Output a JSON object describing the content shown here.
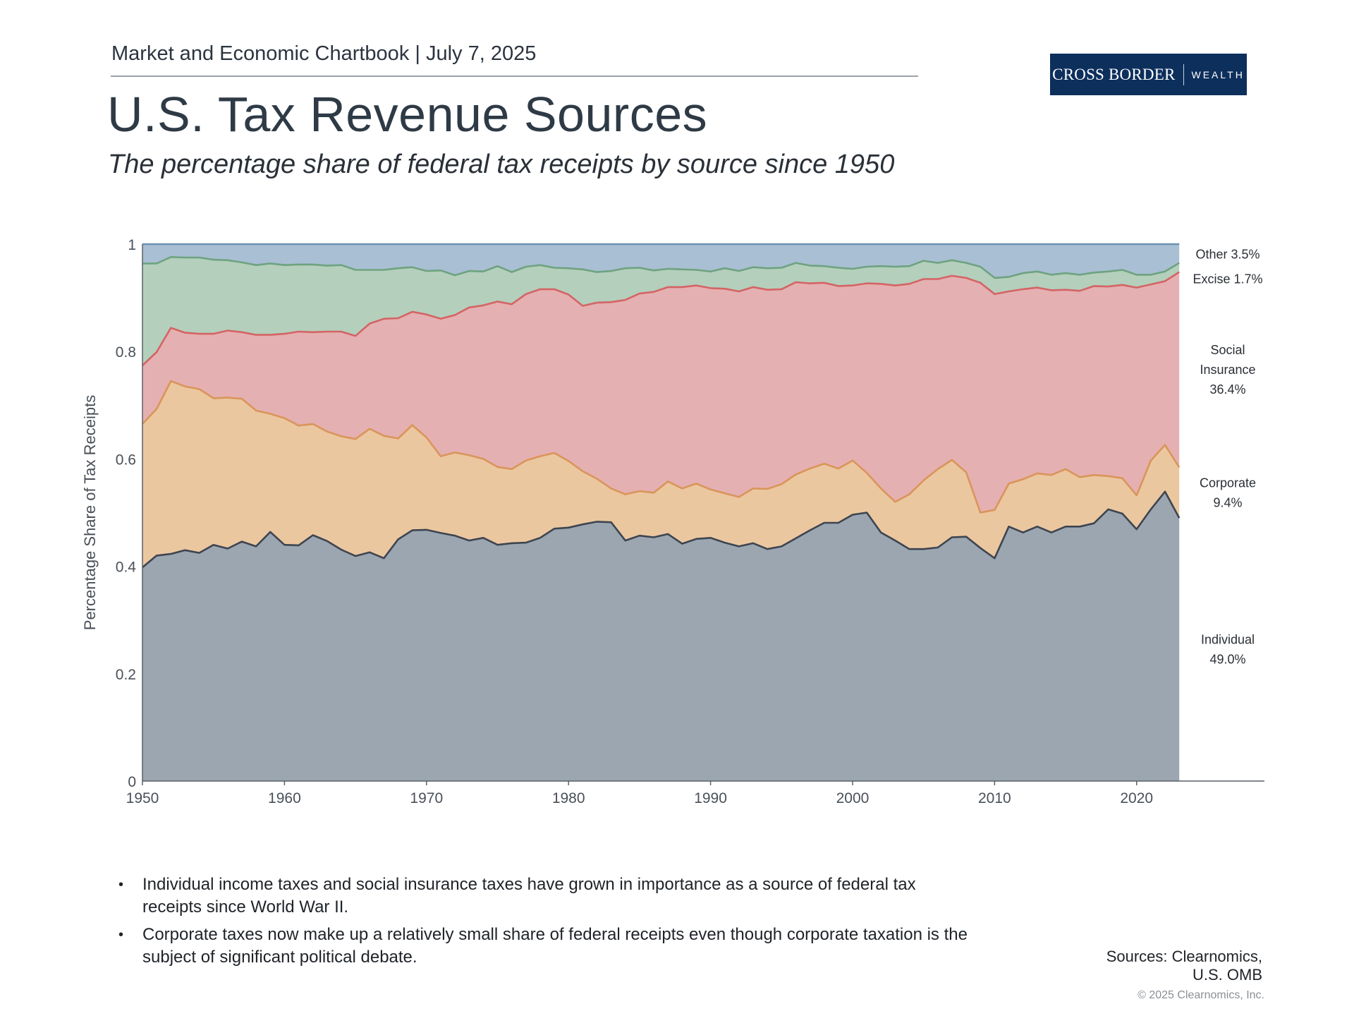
{
  "header": {
    "chartbook": "Market and Economic Chartbook | July 7, 2025",
    "logo_left": "CROSS BORDER",
    "logo_right": "WEALTH"
  },
  "title": "U.S. Tax Revenue Sources",
  "subtitle": "The percentage share of federal tax receipts by source since 1950",
  "chart_data": {
    "type": "area",
    "stacked": true,
    "title": "U.S. Tax Revenue Sources",
    "xlabel": "",
    "ylabel": "Percentage Share of Tax Receipts",
    "xlim": [
      1950,
      2029
    ],
    "ylim": [
      0,
      1
    ],
    "x_ticks": [
      1950,
      1960,
      1970,
      1980,
      1990,
      2000,
      2010,
      2020
    ],
    "y_ticks": [
      "0",
      "0.2",
      "0.4",
      "0.6",
      "0.8",
      "1"
    ],
    "grid": false,
    "x": [
      1950,
      1951,
      1952,
      1953,
      1954,
      1955,
      1956,
      1957,
      1958,
      1959,
      1960,
      1961,
      1962,
      1963,
      1964,
      1965,
      1966,
      1967,
      1968,
      1969,
      1970,
      1971,
      1972,
      1973,
      1974,
      1975,
      1976,
      1977,
      1978,
      1979,
      1980,
      1981,
      1982,
      1983,
      1984,
      1985,
      1986,
      1987,
      1988,
      1989,
      1990,
      1991,
      1992,
      1993,
      1994,
      1995,
      1996,
      1997,
      1998,
      1999,
      2000,
      2001,
      2002,
      2003,
      2004,
      2005,
      2006,
      2007,
      2008,
      2009,
      2010,
      2011,
      2012,
      2013,
      2014,
      2015,
      2016,
      2017,
      2018,
      2019,
      2020,
      2021,
      2022,
      2023
    ],
    "series": [
      {
        "name": "Individual",
        "color": "#9ca6b0",
        "line": "#3d4550",
        "values": [
          0.398,
          0.42,
          0.423,
          0.43,
          0.425,
          0.44,
          0.433,
          0.446,
          0.437,
          0.464,
          0.44,
          0.439,
          0.458,
          0.447,
          0.431,
          0.419,
          0.426,
          0.415,
          0.45,
          0.467,
          0.468,
          0.462,
          0.457,
          0.448,
          0.453,
          0.44,
          0.443,
          0.444,
          0.453,
          0.47,
          0.472,
          0.478,
          0.483,
          0.482,
          0.448,
          0.457,
          0.454,
          0.46,
          0.442,
          0.451,
          0.453,
          0.444,
          0.437,
          0.443,
          0.432,
          0.437,
          0.452,
          0.467,
          0.481,
          0.481,
          0.496,
          0.5,
          0.463,
          0.448,
          0.432,
          0.432,
          0.435,
          0.454,
          0.455,
          0.434,
          0.415,
          0.474,
          0.463,
          0.474,
          0.463,
          0.474,
          0.474,
          0.48,
          0.506,
          0.498,
          0.469,
          0.506,
          0.539,
          0.49
        ]
      },
      {
        "name": "Corporate",
        "color": "#ebc7a0",
        "line": "#d9955a",
        "values": [
          0.267,
          0.273,
          0.322,
          0.305,
          0.305,
          0.273,
          0.281,
          0.266,
          0.253,
          0.22,
          0.236,
          0.223,
          0.207,
          0.204,
          0.211,
          0.218,
          0.23,
          0.228,
          0.188,
          0.196,
          0.172,
          0.143,
          0.155,
          0.159,
          0.147,
          0.145,
          0.138,
          0.153,
          0.152,
          0.141,
          0.124,
          0.099,
          0.08,
          0.063,
          0.086,
          0.083,
          0.083,
          0.098,
          0.103,
          0.103,
          0.09,
          0.092,
          0.092,
          0.102,
          0.112,
          0.116,
          0.119,
          0.115,
          0.11,
          0.101,
          0.101,
          0.074,
          0.082,
          0.072,
          0.102,
          0.128,
          0.146,
          0.144,
          0.12,
          0.066,
          0.09,
          0.08,
          0.099,
          0.099,
          0.107,
          0.107,
          0.092,
          0.09,
          0.062,
          0.066,
          0.063,
          0.091,
          0.087,
          0.094
        ]
      },
      {
        "name": "Social Insurance",
        "color": "#e5b0b1",
        "line": "#d46465",
        "values": [
          0.109,
          0.106,
          0.099,
          0.1,
          0.103,
          0.12,
          0.125,
          0.124,
          0.141,
          0.147,
          0.157,
          0.175,
          0.171,
          0.186,
          0.195,
          0.192,
          0.196,
          0.218,
          0.224,
          0.211,
          0.229,
          0.256,
          0.256,
          0.275,
          0.286,
          0.308,
          0.307,
          0.31,
          0.311,
          0.305,
          0.31,
          0.308,
          0.328,
          0.347,
          0.362,
          0.368,
          0.374,
          0.362,
          0.375,
          0.369,
          0.375,
          0.381,
          0.383,
          0.375,
          0.371,
          0.363,
          0.358,
          0.345,
          0.337,
          0.34,
          0.326,
          0.353,
          0.381,
          0.403,
          0.392,
          0.375,
          0.354,
          0.343,
          0.362,
          0.428,
          0.402,
          0.358,
          0.354,
          0.346,
          0.344,
          0.334,
          0.347,
          0.352,
          0.353,
          0.36,
          0.387,
          0.328,
          0.305,
          0.364
        ]
      },
      {
        "name": "Excise",
        "color": "#b4cfbc",
        "line": "#6ea380",
        "values": [
          0.19,
          0.165,
          0.132,
          0.14,
          0.142,
          0.138,
          0.131,
          0.13,
          0.13,
          0.133,
          0.128,
          0.125,
          0.126,
          0.123,
          0.124,
          0.123,
          0.1,
          0.091,
          0.093,
          0.083,
          0.081,
          0.09,
          0.074,
          0.068,
          0.063,
          0.066,
          0.06,
          0.051,
          0.045,
          0.04,
          0.049,
          0.068,
          0.057,
          0.058,
          0.059,
          0.048,
          0.04,
          0.034,
          0.033,
          0.029,
          0.031,
          0.038,
          0.038,
          0.037,
          0.04,
          0.04,
          0.036,
          0.033,
          0.031,
          0.034,
          0.031,
          0.031,
          0.033,
          0.035,
          0.033,
          0.034,
          0.03,
          0.029,
          0.028,
          0.03,
          0.03,
          0.027,
          0.03,
          0.03,
          0.029,
          0.031,
          0.03,
          0.025,
          0.028,
          0.028,
          0.024,
          0.018,
          0.018,
          0.017
        ]
      },
      {
        "name": "Other",
        "color": "#a9bfd3",
        "line": "#6b93b4",
        "values": [
          0.036,
          0.036,
          0.024,
          0.025,
          0.025,
          0.029,
          0.03,
          0.034,
          0.039,
          0.036,
          0.039,
          0.038,
          0.038,
          0.04,
          0.039,
          0.048,
          0.048,
          0.048,
          0.045,
          0.043,
          0.05,
          0.049,
          0.058,
          0.05,
          0.051,
          0.041,
          0.052,
          0.042,
          0.039,
          0.044,
          0.045,
          0.047,
          0.052,
          0.05,
          0.045,
          0.044,
          0.049,
          0.046,
          0.047,
          0.048,
          0.051,
          0.045,
          0.05,
          0.043,
          0.045,
          0.044,
          0.035,
          0.04,
          0.041,
          0.044,
          0.046,
          0.042,
          0.041,
          0.042,
          0.041,
          0.031,
          0.035,
          0.03,
          0.035,
          0.042,
          0.063,
          0.061,
          0.054,
          0.051,
          0.057,
          0.054,
          0.057,
          0.053,
          0.051,
          0.048,
          0.057,
          0.057,
          0.051,
          0.035
        ]
      }
    ],
    "end_labels": [
      {
        "series": "Other",
        "lines": [
          "Other  3.5%"
        ]
      },
      {
        "series": "Excise",
        "lines": [
          "Excise  1.7%"
        ]
      },
      {
        "series": "Social Insurance",
        "lines": [
          "Social",
          "Insurance",
          "36.4%"
        ]
      },
      {
        "series": "Corporate",
        "lines": [
          "Corporate",
          "9.4%"
        ]
      },
      {
        "series": "Individual",
        "lines": [
          "Individual",
          "49.0%"
        ]
      }
    ]
  },
  "bullets": [
    "Individual income taxes and social insurance taxes have grown in importance as a source of federal tax receipts since World War II.",
    "Corporate taxes now make up a relatively small share of federal receipts even though corporate taxation is the subject of significant political debate."
  ],
  "bullet_symbol": "•",
  "sources": [
    "Sources: Clearnomics,",
    "U.S. OMB"
  ],
  "copyright": "© 2025 Clearnomics, Inc."
}
